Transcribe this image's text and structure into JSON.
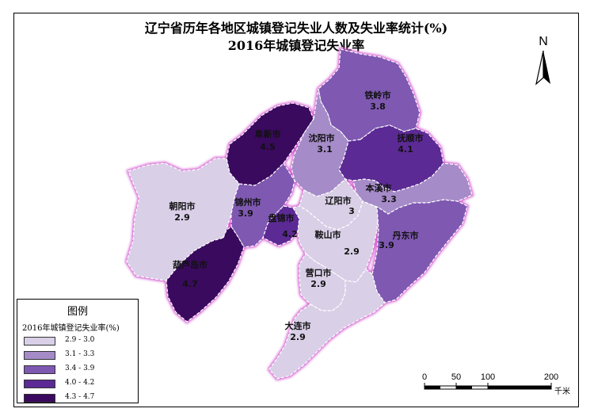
{
  "titles": {
    "main": "辽宁省历年各地区城镇登记失业人数及失业率统计(%)",
    "sub": "2016年城镇登记失业率"
  },
  "colors": {
    "c1": "#d9cfe7",
    "c2": "#a58bc8",
    "c3": "#7e58b1",
    "c4": "#5c2a94",
    "c5": "#3a0a5e",
    "boundary_glow": "#d45ad0"
  },
  "cities": [
    {
      "id": "tieling",
      "name": "铁岭市",
      "value": "3.8",
      "class": "c3"
    },
    {
      "id": "fuxin",
      "name": "阜新市",
      "value": "4.5",
      "class": "c5"
    },
    {
      "id": "shenyang",
      "name": "沈阳市",
      "value": "3.1",
      "class": "c2"
    },
    {
      "id": "fushun",
      "name": "抚顺市",
      "value": "4.1",
      "class": "c4"
    },
    {
      "id": "benxi",
      "name": "本溪市",
      "value": "3.3",
      "class": "c2"
    },
    {
      "id": "chaoyang",
      "name": "朝阳市",
      "value": "2.9",
      "class": "c1"
    },
    {
      "id": "jinzhou",
      "name": "锦州市",
      "value": "3.9",
      "class": "c3"
    },
    {
      "id": "panjin",
      "name": "盘锦市",
      "value": "4.2",
      "class": "c4"
    },
    {
      "id": "liaoyang",
      "name": "辽阳市",
      "value": "3",
      "class": "c1"
    },
    {
      "id": "anshan",
      "name": "鞍山市",
      "value": "2.9",
      "class": "c1"
    },
    {
      "id": "dandong",
      "name": "丹东市",
      "value": "3.9",
      "class": "c3"
    },
    {
      "id": "huludao",
      "name": "葫芦岛市",
      "value": "4.7",
      "class": "c5"
    },
    {
      "id": "yingkou",
      "name": "营口市",
      "value": "2.9",
      "class": "c1"
    },
    {
      "id": "dalian",
      "name": "大连市",
      "value": "2.9",
      "class": "c1"
    }
  ],
  "legend": {
    "title": "图例",
    "subtitle": "2016年城镇登记失业率(%)",
    "items": [
      {
        "label": "2.9 - 3.0",
        "class": "c1"
      },
      {
        "label": "3.1 - 3.3",
        "class": "c2"
      },
      {
        "label": "3.4 - 3.9",
        "class": "c3"
      },
      {
        "label": "4.0 - 4.2",
        "class": "c4"
      },
      {
        "label": "4.3 - 4.7",
        "class": "c5"
      }
    ]
  },
  "north_arrow": {
    "label": "N",
    "icon": "north-arrow-icon"
  },
  "scale_bar": {
    "ticks": [
      "0",
      "50",
      "100",
      "200"
    ],
    "unit": "千米"
  }
}
